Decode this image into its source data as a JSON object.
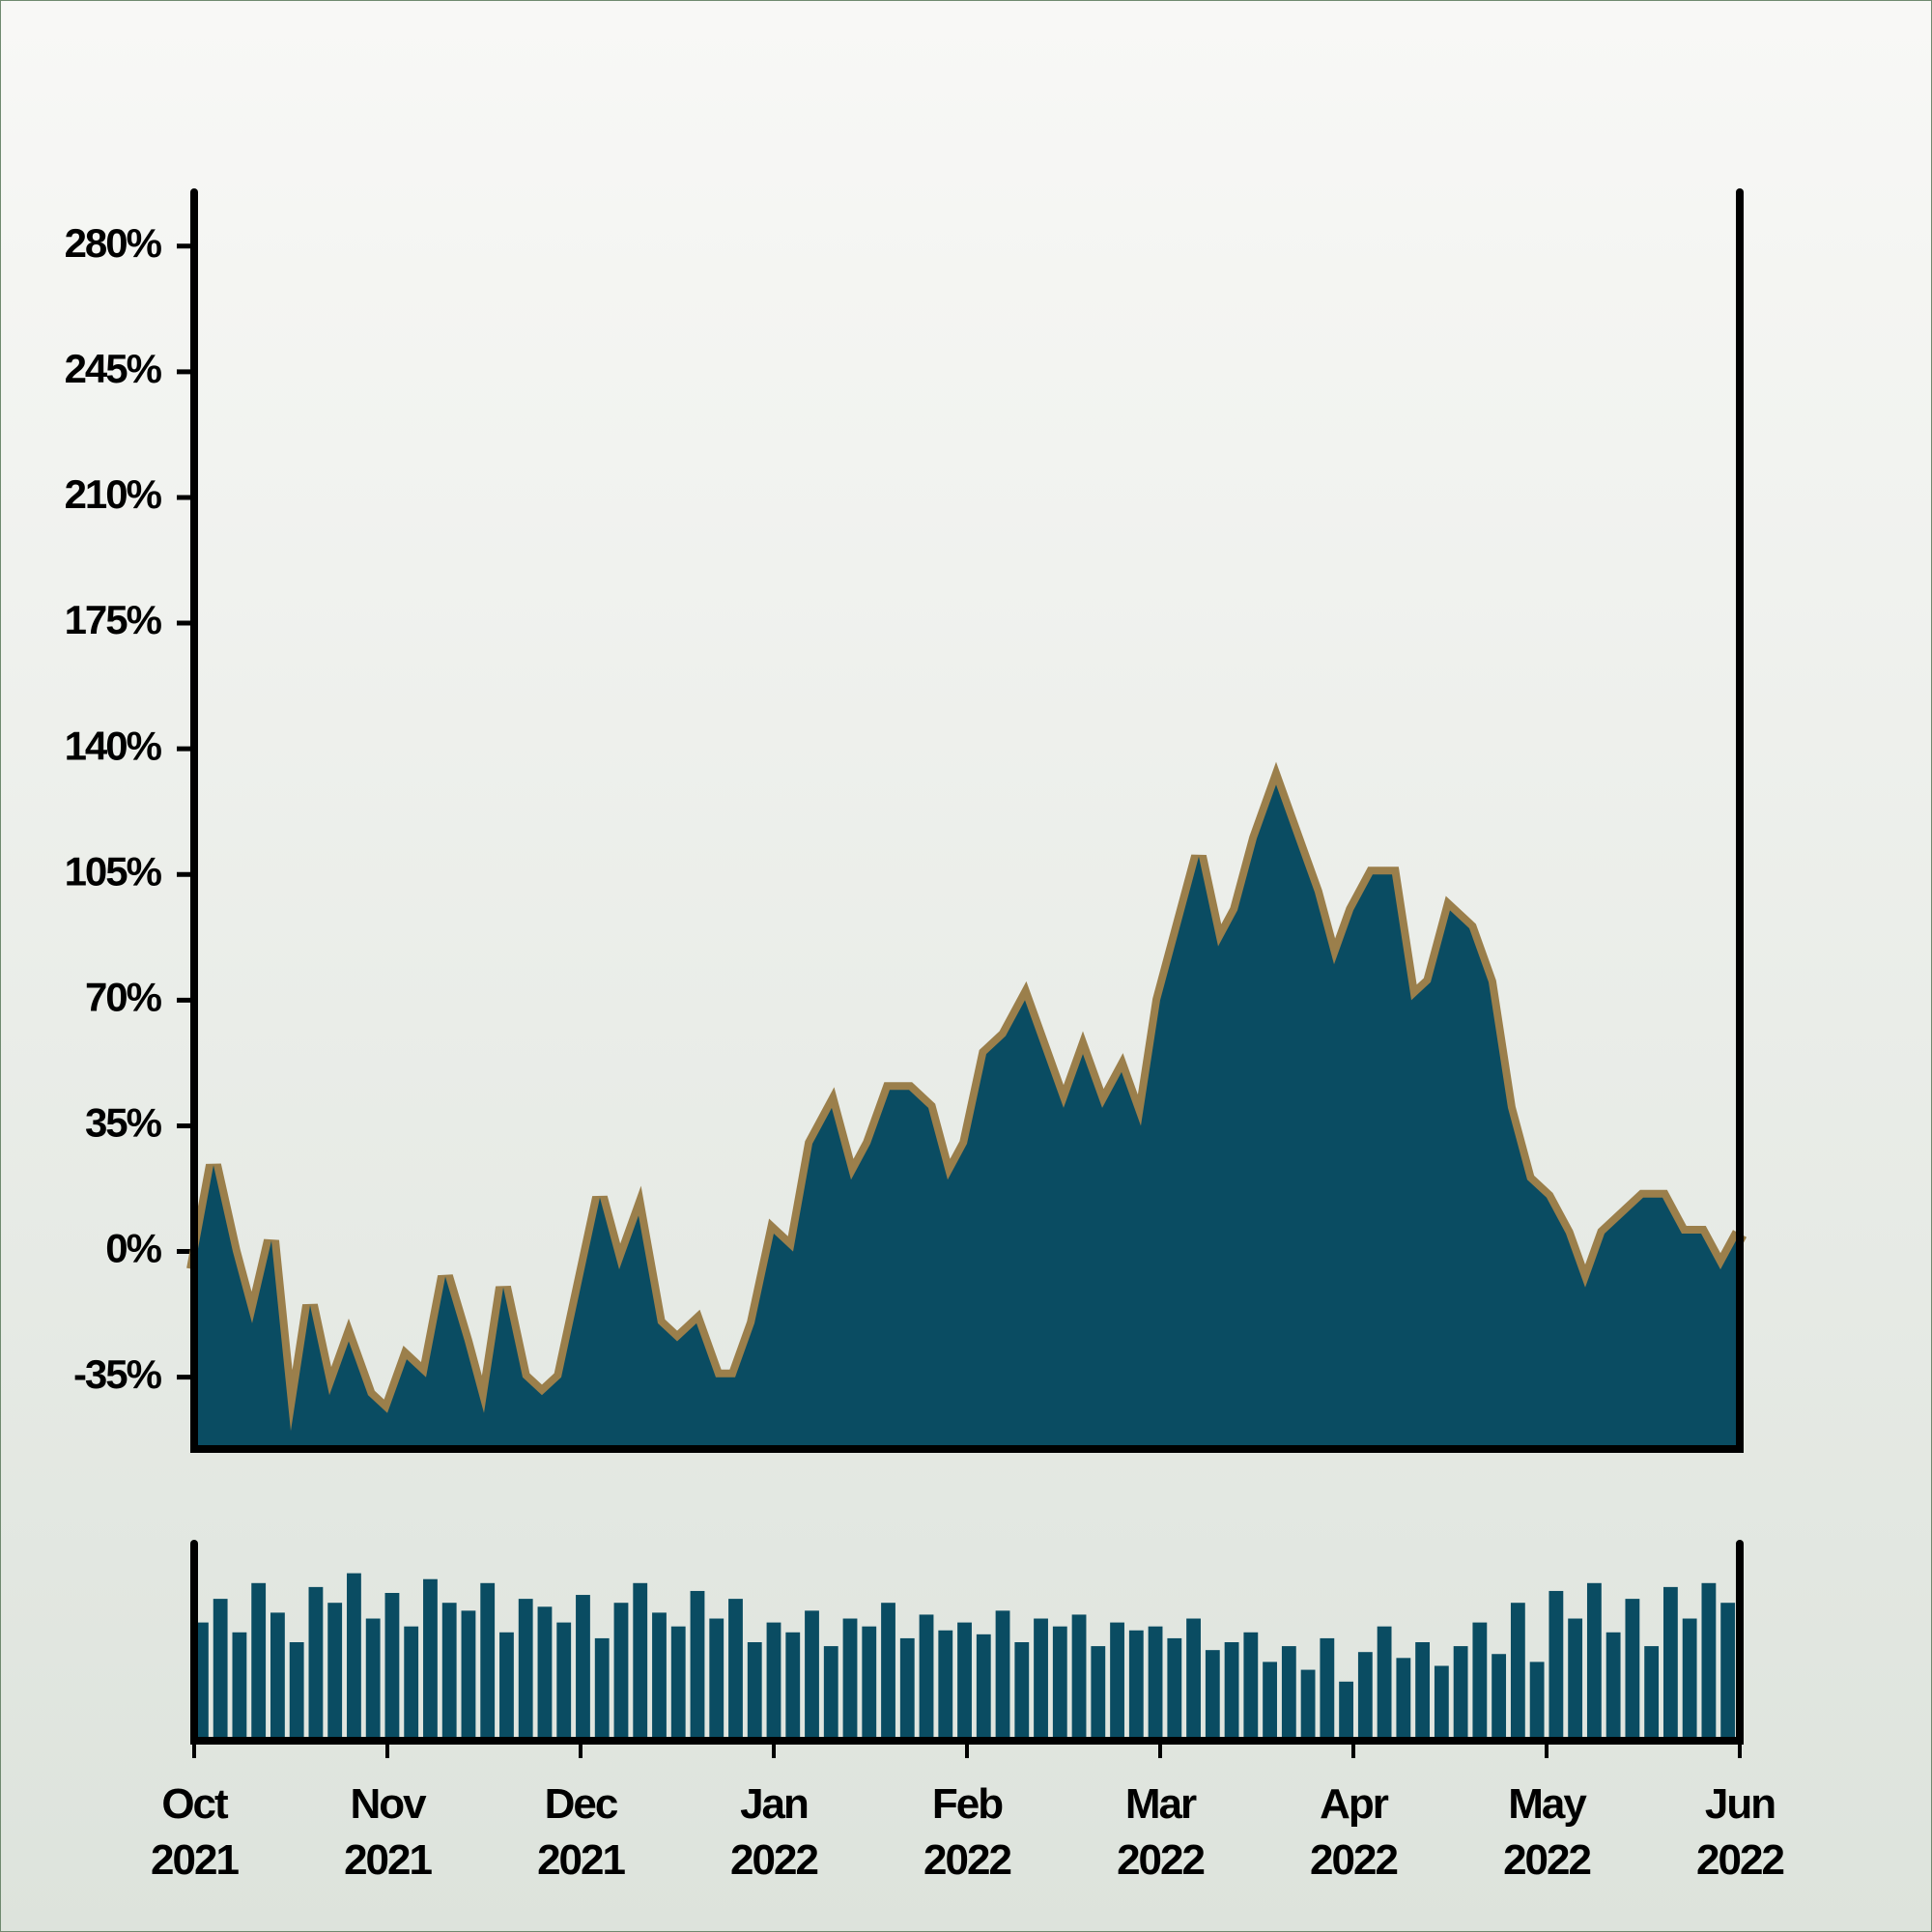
{
  "chart_data": [
    {
      "type": "area",
      "color": "#0a4c62",
      "edge_color": "#9b7f4b",
      "xlim": [
        "2021-10",
        "2022-06"
      ],
      "values": [
        -5,
        24,
        0,
        -20,
        3,
        -50,
        -15,
        -40,
        -25,
        -40,
        -45,
        -30,
        -35,
        -7,
        -25,
        -45,
        -10,
        -35,
        -40,
        -35,
        -10,
        15,
        -5,
        10,
        -20,
        -25,
        -20,
        -35,
        -35,
        -20,
        5,
        0,
        30,
        40,
        20,
        30,
        45,
        45,
        40,
        20,
        30,
        55,
        60,
        70,
        55,
        40,
        55,
        40,
        50,
        35,
        70,
        90,
        110,
        85,
        95,
        115,
        130,
        115,
        100,
        80,
        95,
        105,
        105,
        70,
        75,
        95,
        90,
        75,
        40,
        20,
        15,
        5,
        -10,
        5,
        10,
        15,
        15,
        5,
        5,
        -5,
        5
      ],
      "ylim": [
        -55,
        295
      ],
      "yticks": [
        {
          "value": -35,
          "label": "-35%"
        },
        {
          "value": 0,
          "label": "0%"
        },
        {
          "value": 35,
          "label": "35%"
        },
        {
          "value": 70,
          "label": "70%"
        },
        {
          "value": 105,
          "label": "105%"
        },
        {
          "value": 140,
          "label": "140%"
        },
        {
          "value": 175,
          "label": "175%"
        },
        {
          "value": 210,
          "label": "210%"
        },
        {
          "value": 245,
          "label": "245%"
        },
        {
          "value": 280,
          "label": "280%"
        }
      ]
    },
    {
      "type": "bar",
      "color": "#0a4c62",
      "xlim": [
        "2021-10",
        "2022-06"
      ],
      "values": [
        60,
        72,
        55,
        80,
        65,
        50,
        78,
        70,
        85,
        62,
        75,
        58,
        82,
        70,
        66,
        80,
        55,
        72,
        68,
        60,
        74,
        52,
        70,
        80,
        65,
        58,
        76,
        62,
        72,
        50,
        60,
        55,
        66,
        48,
        62,
        58,
        70,
        52,
        64,
        56,
        60,
        54,
        66,
        50,
        62,
        58,
        64,
        48,
        60,
        56,
        58,
        52,
        62,
        46,
        50,
        55,
        40,
        48,
        36,
        52,
        30,
        45,
        58,
        42,
        50,
        38,
        48,
        60,
        44,
        70,
        40,
        76,
        62,
        80,
        55,
        72,
        48,
        78,
        62,
        80,
        70
      ],
      "ylim": [
        0,
        100
      ],
      "xticks": [
        {
          "value": "2021-10",
          "label": "Oct 2021"
        },
        {
          "value": "2021-11",
          "label": "Nov 2021"
        },
        {
          "value": "2021-12",
          "label": "Dec 2021"
        },
        {
          "value": "2022-01",
          "label": "Jan 2022"
        },
        {
          "value": "2022-02",
          "label": "Feb 2022"
        },
        {
          "value": "2022-03",
          "label": "Mar 2022"
        },
        {
          "value": "2022-04",
          "label": "Apr 2022"
        },
        {
          "value": "2022-05",
          "label": "May 2022"
        },
        {
          "value": "2022-06",
          "label": "Jun 2022"
        }
      ]
    }
  ]
}
